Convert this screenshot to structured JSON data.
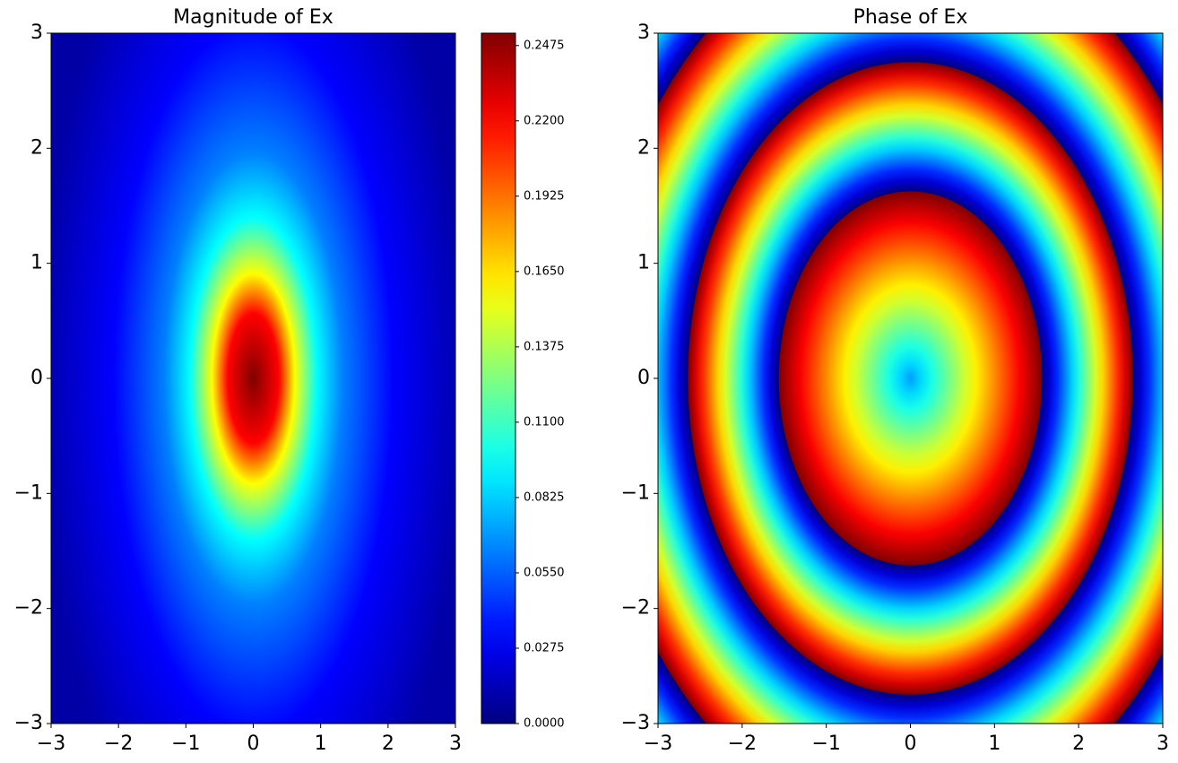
{
  "chart_data": [
    {
      "type": "heatmap",
      "title": "Magnitude of Ex",
      "colormap": "jet",
      "xlim": [
        -3,
        3
      ],
      "ylim": [
        -3,
        3
      ],
      "xticks": [
        {
          "value": -3,
          "label": "−3"
        },
        {
          "value": -2,
          "label": "−2"
        },
        {
          "value": -1,
          "label": "−1"
        },
        0,
        1,
        2,
        3
      ],
      "yticks": [
        {
          "value": -3,
          "label": "−3"
        },
        {
          "value": -2,
          "label": "−2"
        },
        {
          "value": -1,
          "label": "−1"
        },
        0,
        1,
        2,
        3
      ],
      "clim": [
        0,
        0.252
      ],
      "colorbar_ticks": [
        {
          "value": 0,
          "label": "0.0000"
        },
        {
          "value": 0.0275,
          "label": "0.0275"
        },
        {
          "value": 0.055,
          "label": "0.0550"
        },
        {
          "value": 0.0825,
          "label": "0.0825"
        },
        {
          "value": 0.11,
          "label": "0.1100"
        },
        {
          "value": 0.1375,
          "label": "0.1375"
        },
        {
          "value": 0.165,
          "label": "0.1650"
        },
        {
          "value": 0.1925,
          "label": "0.1925"
        },
        {
          "value": 0.22,
          "label": "0.2200"
        },
        {
          "value": 0.2475,
          "label": "0.2475"
        }
      ]
    },
    {
      "type": "phase",
      "title": "Phase of Ex",
      "colormap": "jet",
      "xlim": [
        -3,
        3
      ],
      "ylim": [
        -3,
        3
      ],
      "xticks": [
        {
          "value": -3,
          "label": "−3"
        },
        {
          "value": -2,
          "label": "−2"
        },
        {
          "value": -1,
          "label": "−1"
        },
        0,
        1,
        2,
        3
      ],
      "yticks": [
        {
          "value": -3,
          "label": "−3"
        },
        {
          "value": -2,
          "label": "−2"
        },
        {
          "value": -1,
          "label": "−1"
        },
        0,
        1,
        2,
        3
      ]
    }
  ]
}
